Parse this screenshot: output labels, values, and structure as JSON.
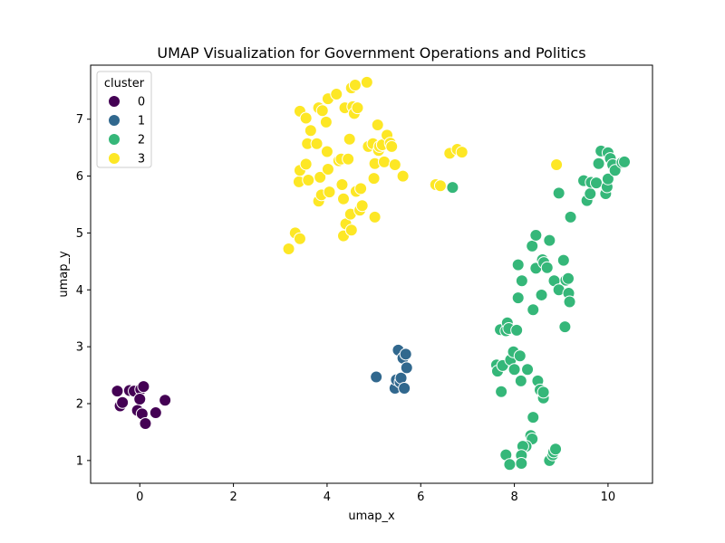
{
  "chart_data": {
    "type": "scatter",
    "title": "UMAP Visualization for Government Operations and Politics",
    "xlabel": "umap_x",
    "ylabel": "umap_y",
    "xlim": [
      -1.05,
      10.95
    ],
    "ylim": [
      0.6,
      7.95
    ],
    "x_ticks": [
      0,
      2,
      4,
      6,
      8,
      10
    ],
    "y_ticks": [
      1,
      2,
      3,
      4,
      5,
      6,
      7
    ],
    "grid": false,
    "legend": {
      "title": "cluster",
      "placement": "top-left"
    },
    "series": [
      {
        "name": "0",
        "color": "#440154",
        "points": [
          [
            -0.48,
            2.22
          ],
          [
            -0.42,
            1.96
          ],
          [
            -0.37,
            2.02
          ],
          [
            -0.22,
            2.23
          ],
          [
            -0.12,
            2.22
          ],
          [
            -0.05,
            1.88
          ],
          [
            0.02,
            2.25
          ],
          [
            0.0,
            2.08
          ],
          [
            0.05,
            1.82
          ],
          [
            0.08,
            2.3
          ],
          [
            0.12,
            1.65
          ],
          [
            0.34,
            1.84
          ],
          [
            0.54,
            2.06
          ]
        ]
      },
      {
        "name": "1",
        "color": "#31688e",
        "points": [
          [
            5.05,
            2.47
          ],
          [
            5.45,
            2.27
          ],
          [
            5.48,
            2.42
          ],
          [
            5.52,
            2.94
          ],
          [
            5.56,
            2.38
          ],
          [
            5.58,
            2.45
          ],
          [
            5.62,
            2.8
          ],
          [
            5.65,
            2.27
          ],
          [
            5.68,
            2.87
          ],
          [
            5.7,
            2.63
          ]
        ]
      },
      {
        "name": "2",
        "color": "#35b779",
        "points": [
          [
            6.68,
            5.8
          ],
          [
            7.62,
            2.68
          ],
          [
            7.64,
            2.57
          ],
          [
            7.7,
            3.3
          ],
          [
            7.72,
            2.21
          ],
          [
            7.75,
            2.67
          ],
          [
            7.82,
            3.28
          ],
          [
            7.85,
            3.42
          ],
          [
            7.88,
            3.32
          ],
          [
            7.92,
            2.77
          ],
          [
            7.98,
            2.91
          ],
          [
            8.0,
            2.6
          ],
          [
            8.05,
            3.29
          ],
          [
            8.08,
            4.44
          ],
          [
            8.08,
            3.86
          ],
          [
            8.12,
            2.84
          ],
          [
            8.14,
            2.4
          ],
          [
            8.16,
            4.16
          ],
          [
            8.28,
            2.6
          ],
          [
            8.38,
            4.77
          ],
          [
            8.4,
            3.65
          ],
          [
            8.46,
            4.96
          ],
          [
            8.46,
            4.38
          ],
          [
            8.5,
            2.4
          ],
          [
            8.55,
            2.24
          ],
          [
            8.58,
            3.91
          ],
          [
            8.6,
            4.53
          ],
          [
            8.62,
            2.1
          ],
          [
            8.62,
            2.2
          ],
          [
            8.63,
            4.48
          ],
          [
            8.7,
            4.39
          ],
          [
            8.75,
            4.87
          ],
          [
            8.85,
            4.16
          ],
          [
            8.95,
            4.0
          ],
          [
            9.05,
            4.52
          ],
          [
            9.08,
            3.35
          ],
          [
            9.1,
            4.17
          ],
          [
            9.15,
            4.2
          ],
          [
            9.16,
            3.94
          ],
          [
            9.18,
            3.79
          ],
          [
            9.2,
            5.28
          ],
          [
            8.95,
            5.7
          ],
          [
            9.48,
            5.92
          ],
          [
            9.55,
            5.57
          ],
          [
            9.62,
            5.69
          ],
          [
            9.64,
            5.89
          ],
          [
            9.75,
            5.88
          ],
          [
            9.8,
            6.22
          ],
          [
            9.85,
            6.44
          ],
          [
            9.95,
            5.69
          ],
          [
            9.98,
            5.81
          ],
          [
            10.0,
            5.95
          ],
          [
            10.0,
            6.41
          ],
          [
            10.05,
            6.31
          ],
          [
            10.1,
            6.2
          ],
          [
            10.15,
            6.1
          ],
          [
            10.3,
            6.24
          ],
          [
            10.35,
            6.25
          ],
          [
            8.4,
            1.76
          ],
          [
            8.35,
            1.44
          ],
          [
            8.38,
            1.38
          ],
          [
            8.25,
            1.25
          ],
          [
            8.18,
            1.25
          ],
          [
            8.15,
            1.09
          ],
          [
            8.15,
            0.95
          ],
          [
            7.82,
            1.1
          ],
          [
            7.9,
            0.93
          ],
          [
            8.75,
            1.0
          ],
          [
            8.82,
            1.1
          ],
          [
            8.84,
            1.15
          ],
          [
            8.88,
            1.2
          ]
        ]
      },
      {
        "name": "3",
        "color": "#fde725",
        "points": [
          [
            3.18,
            4.72
          ],
          [
            3.32,
            5.0
          ],
          [
            3.42,
            4.9
          ],
          [
            3.4,
            5.9
          ],
          [
            3.42,
            6.1
          ],
          [
            3.42,
            7.14
          ],
          [
            3.55,
            7.02
          ],
          [
            3.55,
            6.21
          ],
          [
            3.58,
            6.57
          ],
          [
            3.6,
            5.93
          ],
          [
            3.65,
            6.8
          ],
          [
            3.82,
            5.56
          ],
          [
            3.78,
            6.57
          ],
          [
            3.82,
            7.2
          ],
          [
            3.85,
            5.98
          ],
          [
            3.88,
            5.67
          ],
          [
            3.9,
            7.15
          ],
          [
            3.98,
            6.95
          ],
          [
            4.0,
            6.43
          ],
          [
            4.02,
            6.12
          ],
          [
            4.02,
            7.36
          ],
          [
            4.05,
            5.72
          ],
          [
            4.2,
            7.44
          ],
          [
            4.25,
            6.27
          ],
          [
            4.3,
            6.3
          ],
          [
            4.32,
            5.85
          ],
          [
            4.35,
            5.6
          ],
          [
            4.35,
            4.95
          ],
          [
            4.38,
            7.2
          ],
          [
            4.4,
            5.16
          ],
          [
            4.45,
            6.3
          ],
          [
            4.48,
            6.65
          ],
          [
            4.5,
            5.33
          ],
          [
            4.52,
            7.55
          ],
          [
            4.52,
            5.05
          ],
          [
            4.55,
            7.22
          ],
          [
            4.58,
            7.1
          ],
          [
            4.6,
            7.6
          ],
          [
            4.62,
            5.73
          ],
          [
            4.65,
            7.2
          ],
          [
            4.7,
            5.4
          ],
          [
            4.72,
            5.78
          ],
          [
            4.75,
            5.48
          ],
          [
            4.85,
            7.65
          ],
          [
            4.88,
            6.52
          ],
          [
            4.98,
            6.57
          ],
          [
            5.0,
            5.96
          ],
          [
            5.02,
            5.28
          ],
          [
            5.02,
            6.22
          ],
          [
            5.08,
            6.9
          ],
          [
            5.1,
            6.45
          ],
          [
            5.12,
            6.52
          ],
          [
            5.18,
            6.55
          ],
          [
            5.22,
            6.25
          ],
          [
            5.28,
            6.72
          ],
          [
            5.35,
            6.58
          ],
          [
            5.38,
            6.52
          ],
          [
            5.45,
            6.2
          ],
          [
            5.62,
            6.0
          ],
          [
            6.32,
            5.85
          ],
          [
            6.42,
            5.83
          ],
          [
            6.62,
            6.4
          ],
          [
            6.78,
            6.47
          ],
          [
            6.88,
            6.42
          ],
          [
            8.9,
            6.2
          ]
        ]
      }
    ]
  }
}
